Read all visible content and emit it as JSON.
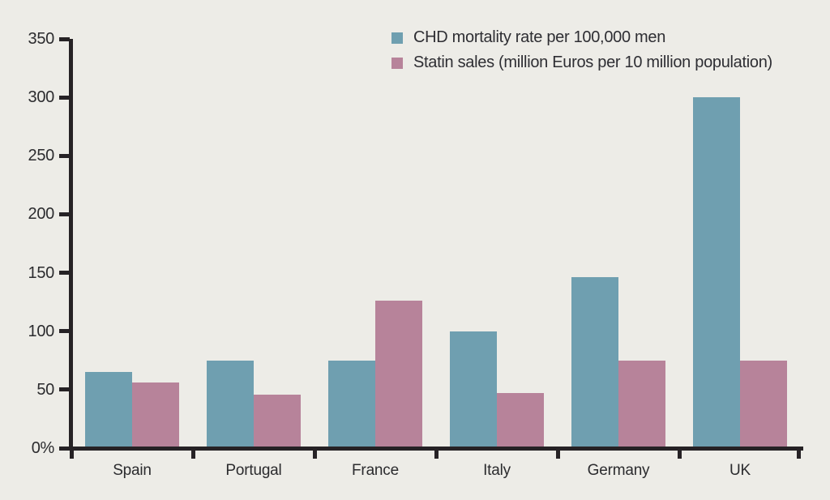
{
  "legend": {
    "items": [
      {
        "label": "CHD mortality rate per 100,000 men",
        "color": "#6f9fb0"
      },
      {
        "label": "Statin sales (million Euros per 10 million population)",
        "color": "#b7839a"
      }
    ]
  },
  "chart_data": {
    "type": "bar",
    "categories": [
      "Spain",
      "Portugal",
      "France",
      "Italy",
      "Germany",
      "UK"
    ],
    "series": [
      {
        "name": "CHD mortality rate per 100,000 men",
        "color": "#6f9fb0",
        "values": [
          65,
          75,
          75,
          100,
          146,
          300
        ]
      },
      {
        "name": "Statin sales (million Euros per 10 million population)",
        "color": "#b7839a",
        "values": [
          56,
          46,
          126,
          47,
          75,
          75
        ]
      }
    ],
    "title": "",
    "xlabel": "",
    "ylabel": "",
    "ylim": [
      0,
      350
    ],
    "ytick_interval": 50,
    "ytick_labels": [
      "0%",
      "50",
      "100",
      "150",
      "200",
      "250",
      "300",
      "350"
    ],
    "grid": false,
    "legend_position": "top-right"
  },
  "colors": {
    "background": "#edece7",
    "axis": "#262225",
    "text": "#2b2b2e"
  }
}
